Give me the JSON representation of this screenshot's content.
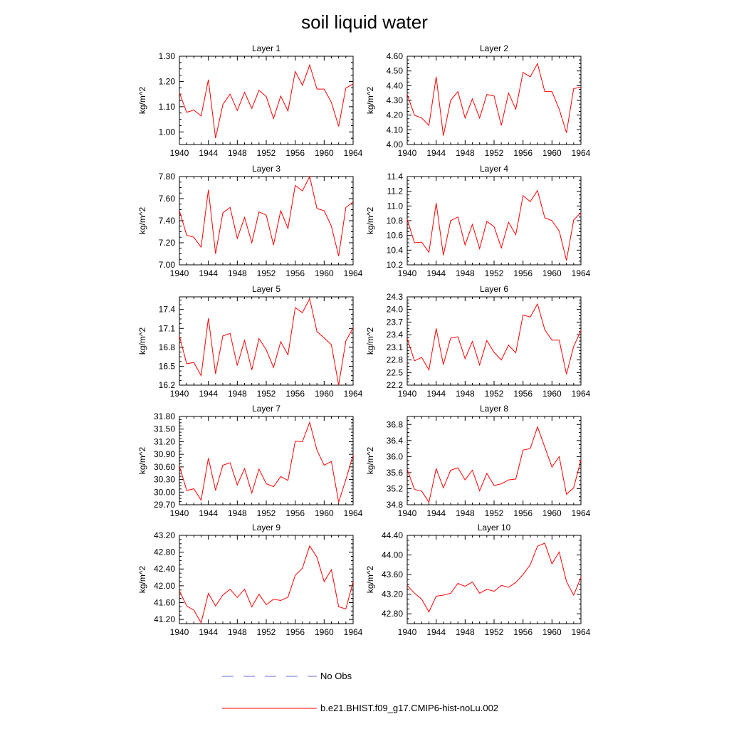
{
  "figure": {
    "title": "soil liquid water"
  },
  "colors": {
    "model_line": "#ff0000",
    "obs_line": "#6b6bd6",
    "axes": "#000000"
  },
  "legend": {
    "entries": [
      {
        "label": "No Obs",
        "style": "dashed",
        "color": "#6b6bd6"
      },
      {
        "label": "b.e21.BHIST.f09_g17.CMIP6-hist-noLu.002",
        "style": "solid",
        "color": "#ff0000"
      }
    ],
    "placement": "bottom-center"
  },
  "chart_data": [
    {
      "type": "line",
      "title": "Layer 1",
      "ylabel": "kg/m^2",
      "xlim": [
        1940,
        1964
      ],
      "xticks": [
        1940,
        1944,
        1948,
        1952,
        1956,
        1960,
        1964
      ],
      "ylim": [
        0.95,
        1.3
      ],
      "yticks": [
        "1.00",
        "1.10",
        "1.20",
        "1.30"
      ],
      "series": [
        {
          "name": "b.e21.BHIST.f09_g17.CMIP6-hist-noLu.002",
          "x": [
            1940,
            1941,
            1942,
            1943,
            1944,
            1945,
            1946,
            1947,
            1948,
            1949,
            1950,
            1951,
            1952,
            1953,
            1954,
            1955,
            1956,
            1957,
            1958,
            1959,
            1960,
            1961,
            1962,
            1963,
            1964
          ],
          "y": [
            1.155,
            1.078,
            1.087,
            1.063,
            1.207,
            0.975,
            1.108,
            1.15,
            1.085,
            1.157,
            1.093,
            1.165,
            1.14,
            1.053,
            1.142,
            1.083,
            1.24,
            1.185,
            1.265,
            1.17,
            1.17,
            1.117,
            1.022,
            1.174,
            1.19
          ]
        }
      ]
    },
    {
      "type": "line",
      "title": "Layer 2",
      "ylabel": "kg/m^2",
      "xlim": [
        1940,
        1964
      ],
      "xticks": [
        1940,
        1944,
        1948,
        1952,
        1956,
        1960,
        1964
      ],
      "ylim": [
        4.0,
        4.6
      ],
      "yticks": [
        "4.00",
        "4.10",
        "4.20",
        "4.30",
        "4.40",
        "4.50",
        "4.60"
      ],
      "series": [
        {
          "name": "b.e21.BHIST.f09_g17.CMIP6-hist-noLu.002",
          "x": [
            1940,
            1941,
            1942,
            1943,
            1944,
            1945,
            1946,
            1947,
            1948,
            1949,
            1950,
            1951,
            1952,
            1953,
            1954,
            1955,
            1956,
            1957,
            1958,
            1959,
            1960,
            1961,
            1962,
            1963,
            1964
          ],
          "y": [
            4.34,
            4.2,
            4.18,
            4.13,
            4.46,
            4.06,
            4.3,
            4.36,
            4.18,
            4.31,
            4.18,
            4.34,
            4.33,
            4.13,
            4.35,
            4.24,
            4.49,
            4.46,
            4.55,
            4.36,
            4.36,
            4.24,
            4.08,
            4.38,
            4.39
          ]
        }
      ]
    },
    {
      "type": "line",
      "title": "Layer 3",
      "ylabel": "kg/m^2",
      "xlim": [
        1940,
        1964
      ],
      "xticks": [
        1940,
        1944,
        1948,
        1952,
        1956,
        1960,
        1964
      ],
      "ylim": [
        7.0,
        7.8
      ],
      "yticks": [
        "7.00",
        "7.20",
        "7.40",
        "7.60",
        "7.80"
      ],
      "series": [
        {
          "name": "b.e21.BHIST.f09_g17.CMIP6-hist-noLu.002",
          "x": [
            1940,
            1941,
            1942,
            1943,
            1944,
            1945,
            1946,
            1947,
            1948,
            1949,
            1950,
            1951,
            1952,
            1953,
            1954,
            1955,
            1956,
            1957,
            1958,
            1959,
            1960,
            1961,
            1962,
            1963,
            1964
          ],
          "y": [
            7.49,
            7.27,
            7.25,
            7.16,
            7.68,
            7.1,
            7.47,
            7.52,
            7.24,
            7.43,
            7.2,
            7.48,
            7.45,
            7.18,
            7.49,
            7.33,
            7.72,
            7.67,
            7.8,
            7.51,
            7.49,
            7.35,
            7.08,
            7.52,
            7.57
          ]
        }
      ]
    },
    {
      "type": "line",
      "title": "Layer 4",
      "ylabel": "kg/m^2",
      "xlim": [
        1940,
        1964
      ],
      "xticks": [
        1940,
        1944,
        1948,
        1952,
        1956,
        1960,
        1964
      ],
      "ylim": [
        10.2,
        11.4
      ],
      "yticks": [
        "10.2",
        "10.4",
        "10.6",
        "10.8",
        "11.0",
        "11.2",
        "11.4"
      ],
      "series": [
        {
          "name": "b.e21.BHIST.f09_g17.CMIP6-hist-noLu.002",
          "x": [
            1940,
            1941,
            1942,
            1943,
            1944,
            1945,
            1946,
            1947,
            1948,
            1949,
            1950,
            1951,
            1952,
            1953,
            1954,
            1955,
            1956,
            1957,
            1958,
            1959,
            1960,
            1961,
            1962,
            1963,
            1964
          ],
          "y": [
            10.82,
            10.5,
            10.51,
            10.37,
            11.04,
            10.33,
            10.8,
            10.85,
            10.47,
            10.75,
            10.42,
            10.79,
            10.72,
            10.43,
            10.78,
            10.61,
            11.14,
            11.06,
            11.21,
            10.84,
            10.8,
            10.66,
            10.26,
            10.81,
            10.91
          ]
        }
      ]
    },
    {
      "type": "line",
      "title": "Layer 5",
      "ylabel": "kg/m^2",
      "xlim": [
        1940,
        1964
      ],
      "xticks": [
        1940,
        1944,
        1948,
        1952,
        1956,
        1960,
        1964
      ],
      "ylim": [
        16.2,
        17.6
      ],
      "yticks": [
        "16.2",
        "16.5",
        "16.8",
        "17.1",
        "17.4"
      ],
      "series": [
        {
          "name": "b.e21.BHIST.f09_g17.CMIP6-hist-noLu.002",
          "x": [
            1940,
            1941,
            1942,
            1943,
            1944,
            1945,
            1946,
            1947,
            1948,
            1949,
            1950,
            1951,
            1952,
            1953,
            1954,
            1955,
            1956,
            1957,
            1958,
            1959,
            1960,
            1961,
            1962,
            1963,
            1964
          ],
          "y": [
            16.98,
            16.54,
            16.56,
            16.35,
            17.26,
            16.38,
            16.98,
            17.02,
            16.51,
            16.91,
            16.44,
            16.94,
            16.76,
            16.48,
            16.89,
            16.68,
            17.43,
            17.35,
            17.57,
            17.05,
            16.95,
            16.84,
            16.2,
            16.9,
            17.11
          ]
        }
      ]
    },
    {
      "type": "line",
      "title": "Layer 6",
      "ylabel": "kg/m^2",
      "xlim": [
        1940,
        1964
      ],
      "xticks": [
        1940,
        1944,
        1948,
        1952,
        1956,
        1960,
        1964
      ],
      "ylim": [
        22.2,
        24.3
      ],
      "yticks": [
        "22.2",
        "22.5",
        "22.8",
        "23.1",
        "23.4",
        "23.7",
        "24.0",
        "24.3"
      ],
      "series": [
        {
          "name": "b.e21.BHIST.f09_g17.CMIP6-hist-noLu.002",
          "x": [
            1940,
            1941,
            1942,
            1943,
            1944,
            1945,
            1946,
            1947,
            1948,
            1949,
            1950,
            1951,
            1952,
            1953,
            1954,
            1955,
            1956,
            1957,
            1958,
            1959,
            1960,
            1961,
            1962,
            1963,
            1964
          ],
          "y": [
            23.31,
            22.78,
            22.86,
            22.56,
            23.55,
            22.69,
            23.32,
            23.35,
            22.83,
            23.24,
            22.68,
            23.26,
            22.98,
            22.8,
            23.15,
            22.97,
            23.87,
            23.82,
            24.13,
            23.52,
            23.27,
            23.27,
            22.46,
            23.12,
            23.5
          ]
        }
      ]
    },
    {
      "type": "line",
      "title": "Layer 7",
      "ylabel": "kg/m^2",
      "xlim": [
        1940,
        1964
      ],
      "xticks": [
        1940,
        1944,
        1948,
        1952,
        1956,
        1960,
        1964
      ],
      "ylim": [
        29.7,
        31.8
      ],
      "yticks": [
        "29.70",
        "30.00",
        "30.30",
        "30.60",
        "30.90",
        "31.20",
        "31.50",
        "31.80"
      ],
      "series": [
        {
          "name": "b.e21.BHIST.f09_g17.CMIP6-hist-noLu.002",
          "x": [
            1940,
            1941,
            1942,
            1943,
            1944,
            1945,
            1946,
            1947,
            1948,
            1949,
            1950,
            1951,
            1952,
            1953,
            1954,
            1955,
            1956,
            1957,
            1958,
            1959,
            1960,
            1961,
            1962,
            1963,
            1964
          ],
          "y": [
            30.62,
            30.04,
            30.08,
            29.81,
            30.81,
            30.04,
            30.64,
            30.7,
            30.17,
            30.56,
            29.98,
            30.55,
            30.2,
            30.13,
            30.37,
            30.28,
            31.21,
            31.2,
            31.66,
            31.0,
            30.64,
            30.73,
            29.76,
            30.3,
            30.88
          ]
        }
      ]
    },
    {
      "type": "line",
      "title": "Layer 8",
      "ylabel": "kg/m^2",
      "xlim": [
        1940,
        1964
      ],
      "xticks": [
        1940,
        1944,
        1948,
        1952,
        1956,
        1960,
        1964
      ],
      "ylim": [
        34.8,
        37.0
      ],
      "yticks": [
        "34.8",
        "35.2",
        "35.6",
        "36.0",
        "36.4",
        "36.8"
      ],
      "series": [
        {
          "name": "b.e21.BHIST.f09_g17.CMIP6-hist-noLu.002",
          "x": [
            1940,
            1941,
            1942,
            1943,
            1944,
            1945,
            1946,
            1947,
            1948,
            1949,
            1950,
            1951,
            1952,
            1953,
            1954,
            1955,
            1956,
            1957,
            1958,
            1959,
            1960,
            1961,
            1962,
            1963,
            1964
          ],
          "y": [
            35.68,
            35.18,
            35.14,
            34.86,
            35.7,
            35.22,
            35.66,
            35.72,
            35.42,
            35.66,
            35.15,
            35.58,
            35.28,
            35.32,
            35.42,
            35.44,
            36.16,
            36.2,
            36.74,
            36.24,
            35.74,
            36.0,
            35.06,
            35.22,
            35.92
          ]
        }
      ]
    },
    {
      "type": "line",
      "title": "Layer 9",
      "ylabel": "kg/m^2",
      "xlim": [
        1940,
        1964
      ],
      "xticks": [
        1940,
        1944,
        1948,
        1952,
        1956,
        1960,
        1964
      ],
      "ylim": [
        41.1,
        43.2
      ],
      "yticks": [
        "41.20",
        "41.60",
        "42.00",
        "42.40",
        "42.80",
        "43.20"
      ],
      "series": [
        {
          "name": "b.e21.BHIST.f09_g17.CMIP6-hist-noLu.002",
          "x": [
            1940,
            1941,
            1942,
            1943,
            1944,
            1945,
            1946,
            1947,
            1948,
            1949,
            1950,
            1951,
            1952,
            1953,
            1954,
            1955,
            1956,
            1957,
            1958,
            1959,
            1960,
            1961,
            1962,
            1963,
            1964
          ],
          "y": [
            41.88,
            41.52,
            41.42,
            41.12,
            41.82,
            41.52,
            41.78,
            41.92,
            41.72,
            41.92,
            41.5,
            41.8,
            41.55,
            41.68,
            41.65,
            41.73,
            42.25,
            42.42,
            42.95,
            42.68,
            42.1,
            42.38,
            41.5,
            41.45,
            42.1
          ]
        }
      ]
    },
    {
      "type": "line",
      "title": "Layer 10",
      "ylabel": "kg/m^2",
      "xlim": [
        1940,
        1964
      ],
      "xticks": [
        1940,
        1944,
        1948,
        1952,
        1956,
        1960,
        1964
      ],
      "ylim": [
        42.6,
        44.4
      ],
      "yticks": [
        "42.80",
        "43.20",
        "43.60",
        "44.00",
        "44.40"
      ],
      "series": [
        {
          "name": "b.e21.BHIST.f09_g17.CMIP6-hist-noLu.002",
          "x": [
            1940,
            1941,
            1942,
            1943,
            1944,
            1945,
            1946,
            1947,
            1948,
            1949,
            1950,
            1951,
            1952,
            1953,
            1954,
            1955,
            1956,
            1957,
            1958,
            1959,
            1960,
            1961,
            1962,
            1963,
            1964
          ],
          "y": [
            43.38,
            43.22,
            43.1,
            42.84,
            43.16,
            43.18,
            43.22,
            43.42,
            43.36,
            43.45,
            43.22,
            43.3,
            43.26,
            43.38,
            43.34,
            43.44,
            43.6,
            43.8,
            44.18,
            44.24,
            43.82,
            44.06,
            43.46,
            43.18,
            43.54
          ]
        }
      ]
    }
  ]
}
